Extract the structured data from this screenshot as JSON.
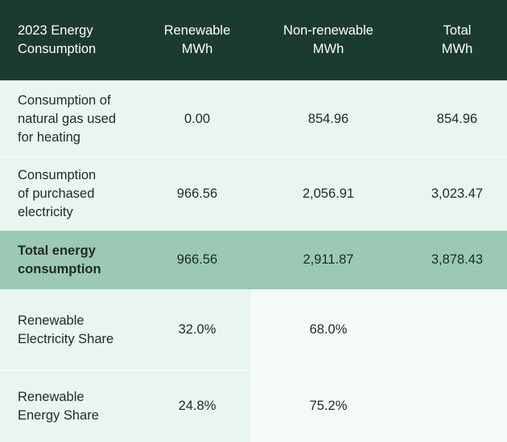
{
  "header": {
    "col0": "2023 Energy\nConsumption",
    "col1": "Renewable\nMWh",
    "col2": "Non-renewable\nMWh",
    "col3": "Total\nMWh"
  },
  "rows": [
    {
      "label": "Consumption of\nnatural gas used\nfor heating",
      "renewable": "0.00",
      "nonrenewable": "854.96",
      "total": "854.96"
    },
    {
      "label": "Consumption\nof purchased\nelectricity",
      "renewable": "966.56",
      "nonrenewable": "2,056.91",
      "total": "3,023.47"
    },
    {
      "label": "Total energy\nconsumption",
      "renewable": "966.56",
      "nonrenewable": "2,911.87",
      "total": "3,878.43"
    },
    {
      "label": "Renewable\nElectricity Share",
      "renewable": "32.0%",
      "nonrenewable": "68.0%",
      "total": ""
    },
    {
      "label": "Renewable\nEnergy Share",
      "renewable": "24.8%",
      "nonrenewable": "75.2%",
      "total": ""
    }
  ],
  "colors": {
    "header_bg": "#1b3a31",
    "row_bg": "#e9f5f0",
    "highlight_bg": "#9bc9b3"
  }
}
